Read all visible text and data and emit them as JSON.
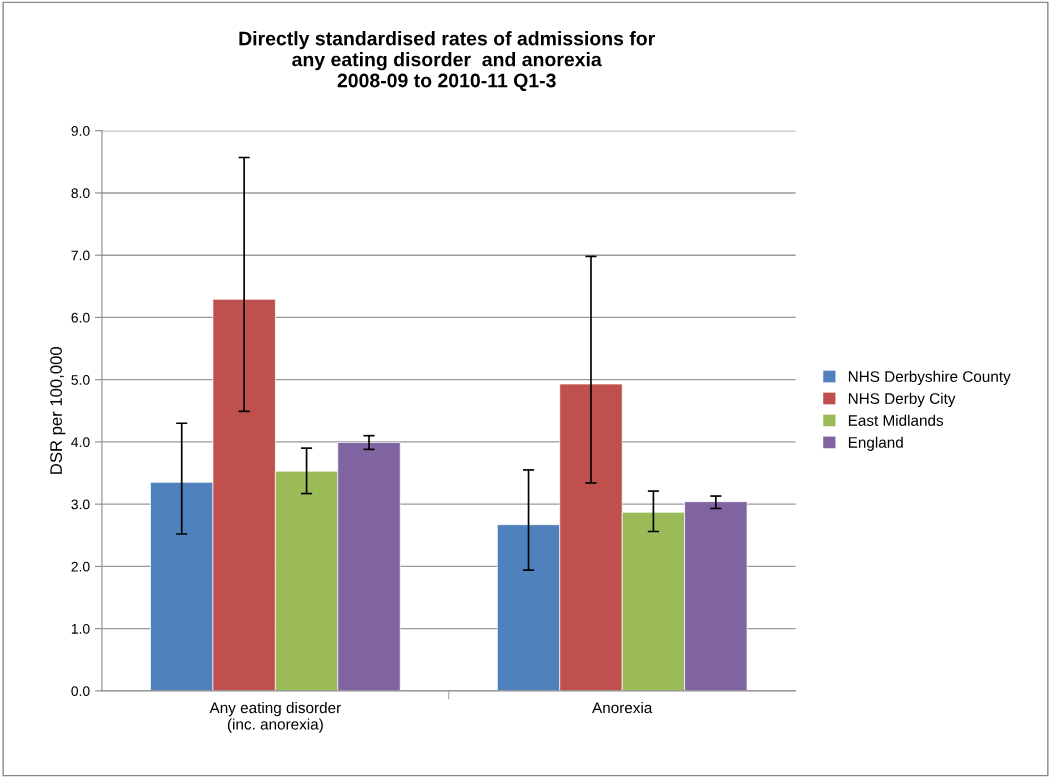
{
  "chart_data": {
    "type": "bar",
    "title": "Directly standardised rates of admissions for\nany eating disorder  and anorexia\n2008-09 to 2010-11 Q1-3",
    "ylabel": "DSR per 100,000",
    "categories": [
      "Any eating disorder\n(inc. anorexia)",
      "Anorexia"
    ],
    "series": [
      {
        "name": "NHS Derbyshire County",
        "color": "#4f81bd",
        "values": [
          3.35,
          2.67
        ],
        "errors": [
          [
            2.52,
            4.3
          ],
          [
            1.94,
            3.55
          ]
        ]
      },
      {
        "name": "NHS Derby City",
        "color": "#c0504d",
        "values": [
          6.29,
          4.93
        ],
        "errors": [
          [
            4.49,
            8.57
          ],
          [
            3.34,
            6.98
          ]
        ]
      },
      {
        "name": "East Midlands",
        "color": "#9bbb59",
        "values": [
          3.53,
          2.87
        ],
        "errors": [
          [
            3.17,
            3.9
          ],
          [
            2.56,
            3.21
          ]
        ]
      },
      {
        "name": "England",
        "color": "#8064a2",
        "values": [
          3.99,
          3.04
        ],
        "errors": [
          [
            3.88,
            4.1
          ],
          [
            2.93,
            3.13
          ]
        ]
      }
    ],
    "ylim": [
      0,
      9
    ],
    "yticks": [
      {
        "value": 0,
        "label": "0.0"
      },
      {
        "value": 1,
        "label": "1.0"
      },
      {
        "value": 2,
        "label": "2.0"
      },
      {
        "value": 3,
        "label": "3.0"
      },
      {
        "value": 4,
        "label": "4.0"
      },
      {
        "value": 5,
        "label": "5.0"
      },
      {
        "value": 6,
        "label": "6.0"
      },
      {
        "value": 7,
        "label": "7.0"
      },
      {
        "value": 8,
        "label": "8.0"
      },
      {
        "value": 9,
        "label": "9.0"
      }
    ],
    "grid": "y",
    "legend": "right"
  }
}
